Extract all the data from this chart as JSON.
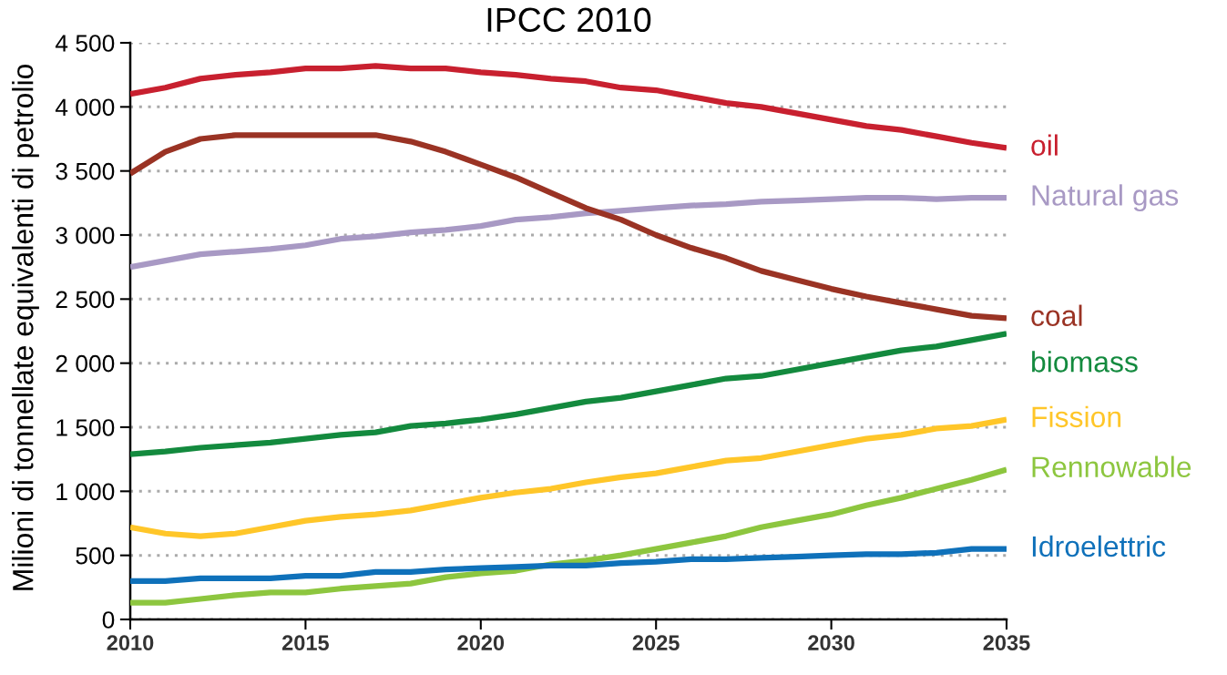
{
  "chart_data": {
    "type": "line",
    "title": "IPCC 2010",
    "ylabel": "Milioni di tonnellate equivalenti di petrolio",
    "x": [
      2010,
      2011,
      2012,
      2013,
      2014,
      2015,
      2016,
      2017,
      2018,
      2019,
      2020,
      2021,
      2022,
      2023,
      2024,
      2025,
      2026,
      2027,
      2028,
      2029,
      2030,
      2031,
      2032,
      2033,
      2034,
      2035
    ],
    "series": [
      {
        "name": "oil",
        "color": "#c8202f",
        "values": [
          4100,
          4150,
          4220,
          4250,
          4270,
          4300,
          4300,
          4320,
          4300,
          4300,
          4270,
          4250,
          4220,
          4200,
          4150,
          4130,
          4080,
          4030,
          4000,
          3950,
          3900,
          3850,
          3820,
          3770,
          3720,
          3680
        ]
      },
      {
        "name": "Natural gas",
        "color": "#a899c4",
        "values": [
          2750,
          2800,
          2850,
          2870,
          2890,
          2920,
          2970,
          2990,
          3020,
          3040,
          3070,
          3120,
          3140,
          3170,
          3190,
          3210,
          3230,
          3240,
          3260,
          3270,
          3280,
          3290,
          3290,
          3280,
          3290,
          3290
        ]
      },
      {
        "name": "coal",
        "color": "#9a3324",
        "values": [
          3480,
          3650,
          3750,
          3780,
          3780,
          3780,
          3780,
          3780,
          3730,
          3650,
          3550,
          3450,
          3330,
          3210,
          3120,
          3000,
          2900,
          2820,
          2720,
          2650,
          2580,
          2520,
          2470,
          2420,
          2370,
          2350
        ]
      },
      {
        "name": "biomass",
        "color": "#138a3e",
        "values": [
          1290,
          1310,
          1340,
          1360,
          1380,
          1410,
          1440,
          1460,
          1510,
          1530,
          1560,
          1600,
          1650,
          1700,
          1730,
          1780,
          1830,
          1880,
          1900,
          1950,
          2000,
          2050,
          2100,
          2130,
          2180,
          2230
        ]
      },
      {
        "name": "Fission",
        "color": "#ffc629",
        "values": [
          720,
          670,
          650,
          670,
          720,
          770,
          800,
          820,
          850,
          900,
          950,
          990,
          1020,
          1070,
          1110,
          1140,
          1190,
          1240,
          1260,
          1310,
          1360,
          1410,
          1440,
          1490,
          1510,
          1560
        ]
      },
      {
        "name": "Rennowable",
        "color": "#8dc63f",
        "values": [
          130,
          130,
          160,
          190,
          210,
          210,
          240,
          260,
          280,
          330,
          360,
          380,
          430,
          460,
          500,
          550,
          600,
          650,
          720,
          770,
          820,
          890,
          950,
          1020,
          1090,
          1170
        ]
      },
      {
        "name": "Idroelettric",
        "color": "#0f71ba",
        "values": [
          300,
          300,
          320,
          320,
          320,
          340,
          340,
          370,
          370,
          390,
          400,
          410,
          420,
          420,
          440,
          450,
          470,
          470,
          480,
          490,
          500,
          510,
          510,
          520,
          550,
          550
        ]
      }
    ],
    "xlim": [
      2010,
      2035
    ],
    "xticks": [
      2010,
      2015,
      2020,
      2025,
      2030,
      2035
    ],
    "ylim": [
      0,
      4500
    ],
    "yticks": [
      0,
      {
        "value": 500,
        "label": "500"
      },
      {
        "value": 1000,
        "label": "1 000"
      },
      {
        "value": 1500,
        "label": "1 500"
      },
      {
        "value": 2000,
        "label": "2 000"
      },
      {
        "value": 2500,
        "label": "2 500"
      },
      {
        "value": 3000,
        "label": "3 000"
      },
      {
        "value": 3500,
        "label": "3 500"
      },
      {
        "value": 4000,
        "label": "4 000"
      },
      {
        "value": 4500,
        "label": "4 500"
      }
    ],
    "grid": "y",
    "legend": false,
    "marker": "none",
    "line_style": "solid"
  }
}
